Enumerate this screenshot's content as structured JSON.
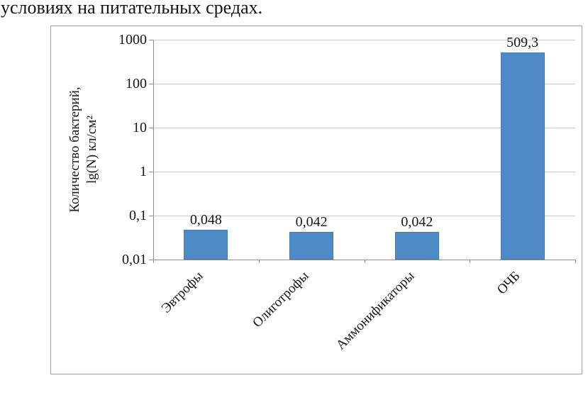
{
  "document": {
    "top_text": "условиях на питательных средах."
  },
  "chart_data": {
    "type": "bar",
    "title": "",
    "xlabel": "",
    "ylabel": "Количество бактерий, lg(N) кл/см²",
    "ylabel_lines": [
      "Количество бактерий,",
      "lg(N) кл/см²"
    ],
    "categories": [
      "Эвтрофы",
      "Олиготрофы",
      "Аммонификаторы",
      "ОЧБ"
    ],
    "values": [
      0.048,
      0.042,
      0.042,
      509.3
    ],
    "value_labels": [
      "0,048",
      "0,042",
      "0,042",
      "509,3"
    ],
    "yscale": "log",
    "ylim": [
      0.01,
      1000
    ],
    "yticks": [
      1000,
      100,
      10,
      1,
      0.1,
      0.01
    ],
    "ytick_labels": [
      "1000",
      "100",
      "10",
      "1",
      "0,1",
      "0,01"
    ],
    "grid": "horizontal",
    "legend": "none",
    "bar_color": "#4E8AC6",
    "frame_border_color": "#9F9F9F",
    "gridline_color": "#C9C9C9",
    "axis_color": "#8F8F8F"
  }
}
